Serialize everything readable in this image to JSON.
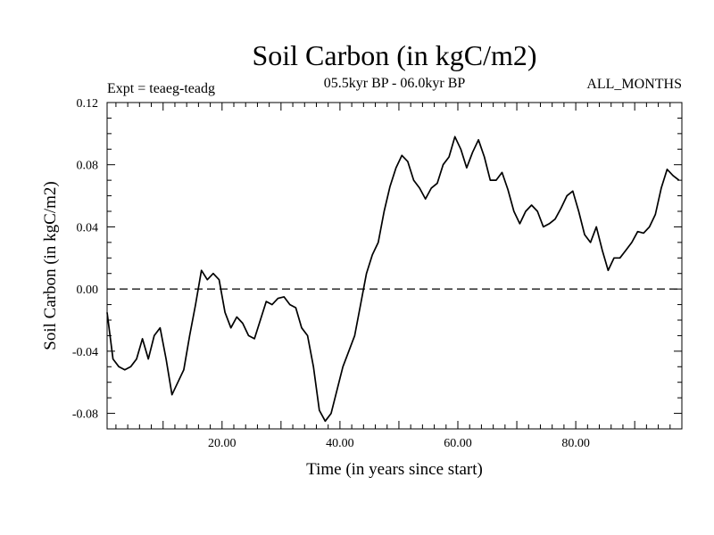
{
  "chart_data": {
    "type": "line",
    "title": "Soil Carbon (in kgC/m2)",
    "subtitle": "05.5kyr BP - 06.0kyr BP",
    "left_annotation": "Expt = teaeg-teadg",
    "right_annotation": "ALL_MONTHS",
    "xlabel": "Time (in years since start)",
    "ylabel": "Soil Carbon (in kgC/m2)",
    "xlim": [
      0.5,
      98
    ],
    "ylim": [
      -0.09,
      0.12
    ],
    "x_ticks": [
      "20.00",
      "40.00",
      "60.00",
      "80.00"
    ],
    "x_tick_values": [
      20,
      40,
      60,
      80
    ],
    "y_ticks": [
      "0.12",
      "0.08",
      "0.04",
      "0.00",
      "-0.04",
      "-0.08"
    ],
    "y_tick_values": [
      0.12,
      0.08,
      0.04,
      0.0,
      -0.04,
      -0.08
    ],
    "reference_line": 0.0,
    "series": [
      {
        "name": "teaeg-teadg",
        "x": [
          0.5,
          1.5,
          2.5,
          3.5,
          4.5,
          5.5,
          6.5,
          7.5,
          8.5,
          9.5,
          10.5,
          11.5,
          12.5,
          13.5,
          14.5,
          15.5,
          16.5,
          17.5,
          18.5,
          19.5,
          20.5,
          21.5,
          22.5,
          23.5,
          24.5,
          25.5,
          26.5,
          27.5,
          28.5,
          29.5,
          30.5,
          31.5,
          32.5,
          33.5,
          34.5,
          35.5,
          36.5,
          37.5,
          38.5,
          39.5,
          40.5,
          41.5,
          42.5,
          43.5,
          44.5,
          45.5,
          46.5,
          47.5,
          48.5,
          49.5,
          50.5,
          51.5,
          52.5,
          53.5,
          54.5,
          55.5,
          56.5,
          57.5,
          58.5,
          59.5,
          60.5,
          61.5,
          62.5,
          63.5,
          64.5,
          65.5,
          66.5,
          67.5,
          68.5,
          69.5,
          70.5,
          71.5,
          72.5,
          73.5,
          74.5,
          75.5,
          76.5,
          77.5,
          78.5,
          79.5,
          80.5,
          81.5,
          82.5,
          83.5,
          84.5,
          85.5,
          86.5,
          87.5,
          88.5,
          89.5,
          90.5,
          91.5,
          92.5,
          93.5,
          94.5,
          95.5,
          96.5,
          97.5
        ],
        "values": [
          -0.015,
          -0.045,
          -0.05,
          -0.052,
          -0.05,
          -0.045,
          -0.032,
          -0.045,
          -0.03,
          -0.025,
          -0.045,
          -0.068,
          -0.06,
          -0.052,
          -0.03,
          -0.01,
          0.012,
          0.006,
          0.01,
          0.006,
          -0.015,
          -0.025,
          -0.018,
          -0.022,
          -0.03,
          -0.032,
          -0.02,
          -0.008,
          -0.01,
          -0.006,
          -0.005,
          -0.01,
          -0.012,
          -0.025,
          -0.03,
          -0.05,
          -0.078,
          -0.085,
          -0.08,
          -0.065,
          -0.05,
          -0.04,
          -0.03,
          -0.01,
          0.01,
          0.022,
          0.03,
          0.05,
          0.066,
          0.078,
          0.086,
          0.082,
          0.07,
          0.065,
          0.058,
          0.065,
          0.068,
          0.08,
          0.085,
          0.098,
          0.09,
          0.078,
          0.088,
          0.096,
          0.085,
          0.07,
          0.07,
          0.075,
          0.064,
          0.05,
          0.042,
          0.05,
          0.054,
          0.05,
          0.04,
          0.042,
          0.045,
          0.052,
          0.06,
          0.063,
          0.05,
          0.035,
          0.03,
          0.04,
          0.025,
          0.012,
          0.02,
          0.02,
          0.025,
          0.03,
          0.037,
          0.036,
          0.04,
          0.048,
          0.065,
          0.077,
          0.073,
          0.07
        ]
      }
    ]
  }
}
